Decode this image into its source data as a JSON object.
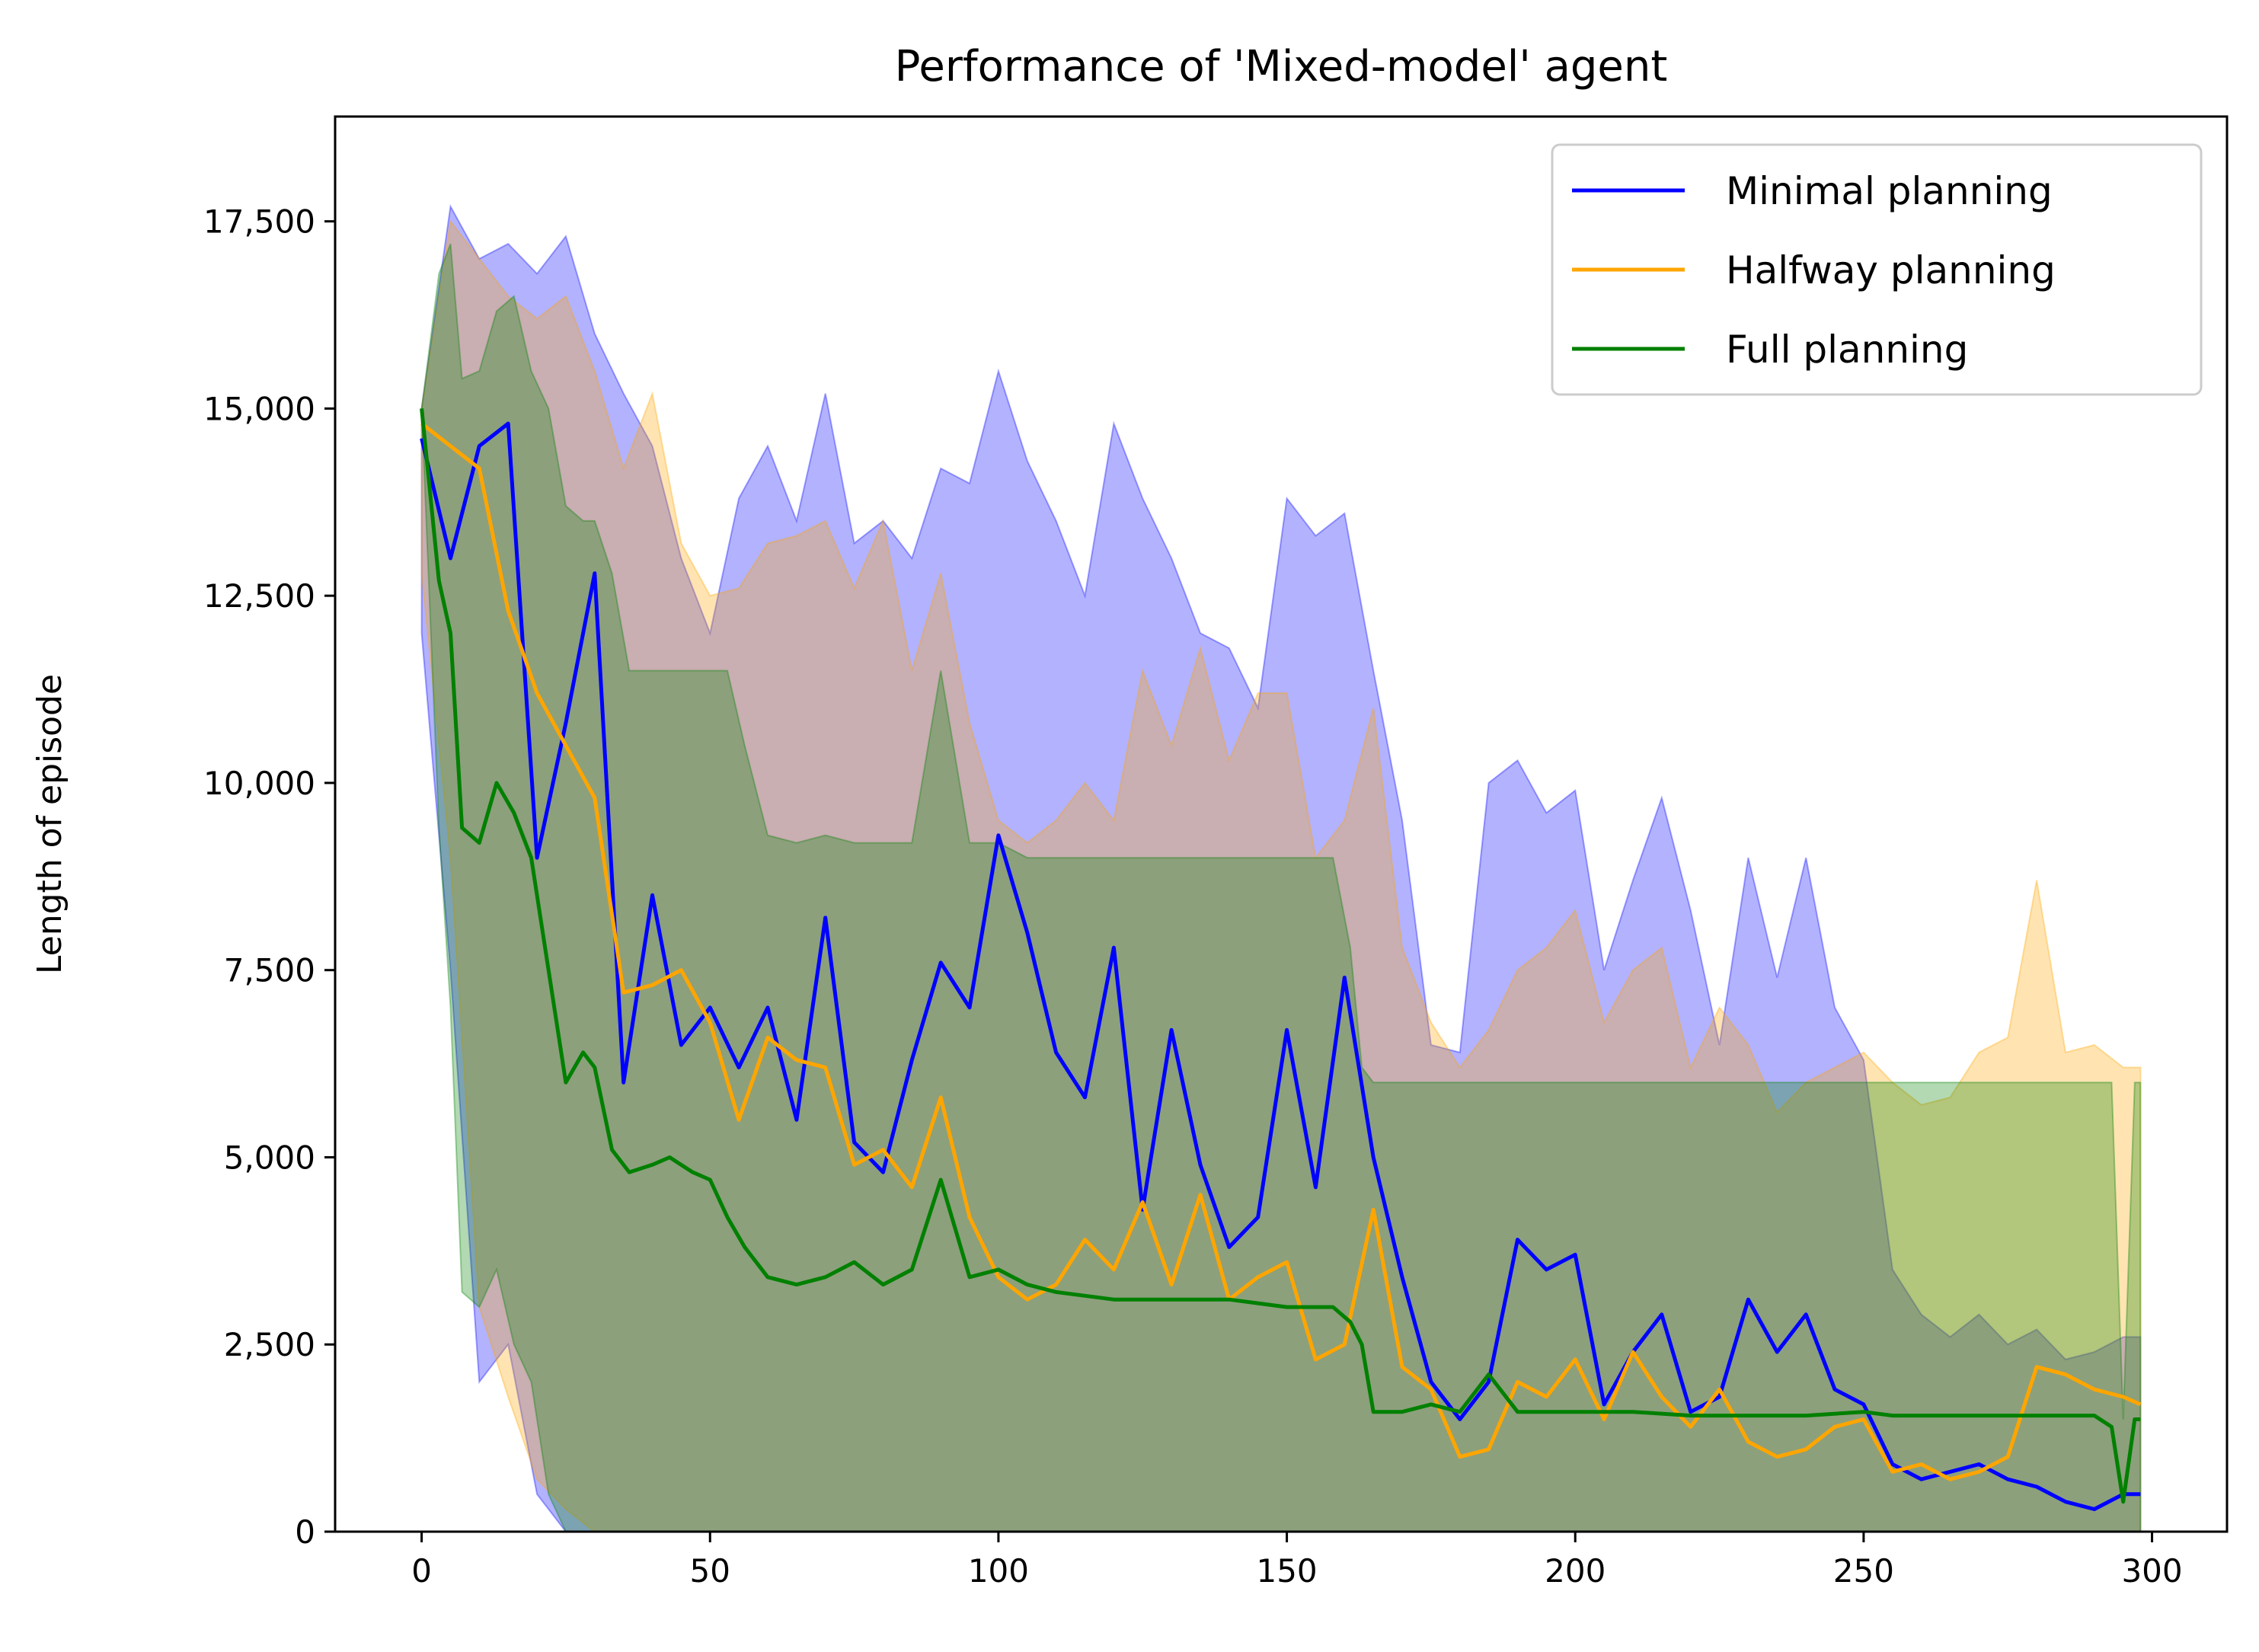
{
  "chart_data": {
    "type": "line",
    "title": "Performance of 'Mixed-model' agent",
    "xlabel": "",
    "ylabel": "Length of episode",
    "xlim": [
      -15,
      313
    ],
    "ylim": [
      0,
      18900
    ],
    "xticks": [
      0,
      50,
      100,
      150,
      200,
      250,
      300
    ],
    "yticks": [
      0,
      2500,
      5000,
      7500,
      10000,
      12500,
      15000,
      17500
    ],
    "xtick_labels": [
      "0",
      "50",
      "100",
      "150",
      "200",
      "250",
      "300"
    ],
    "ytick_labels": [
      "0",
      "2,500",
      "5,000",
      "7,500",
      "10,000",
      "12,500",
      "15,000",
      "17,500"
    ],
    "grid": false,
    "legend_position": "top-right",
    "shaded_band": "min-max range per series (alpha 0.3)",
    "series": [
      {
        "name": "Minimal planning",
        "color": "#0000ff",
        "x": [
          0,
          5,
          10,
          15,
          20,
          25,
          30,
          35,
          40,
          45,
          50,
          55,
          60,
          65,
          70,
          75,
          80,
          85,
          90,
          95,
          100,
          105,
          110,
          115,
          120,
          125,
          130,
          135,
          140,
          145,
          150,
          155,
          160,
          165,
          170,
          175,
          180,
          185,
          190,
          195,
          200,
          205,
          210,
          215,
          220,
          225,
          230,
          235,
          240,
          245,
          250,
          255,
          260,
          265,
          270,
          275,
          280,
          285,
          290,
          295,
          298
        ],
        "y": [
          14600,
          13000,
          14500,
          14800,
          9000,
          10800,
          12800,
          6000,
          8500,
          6500,
          7000,
          6200,
          7000,
          5500,
          8200,
          5200,
          4800,
          6300,
          7600,
          7000,
          9300,
          8000,
          6400,
          5800,
          7800,
          4300,
          6700,
          4900,
          3800,
          4200,
          6700,
          4600,
          7400,
          5000,
          3400,
          2000,
          1500,
          2000,
          3900,
          3500,
          3700,
          1700,
          2400,
          2900,
          1600,
          1800,
          3100,
          2400,
          2900,
          1900,
          1700,
          900,
          700,
          800,
          900,
          700,
          600,
          400,
          300,
          500,
          500
        ],
        "upper": [
          15000,
          17700,
          17000,
          17200,
          16800,
          17300,
          16000,
          15200,
          14500,
          13000,
          12000,
          13800,
          14500,
          13500,
          15200,
          13200,
          13500,
          13000,
          14200,
          14000,
          15500,
          14300,
          13500,
          12500,
          14800,
          13800,
          13000,
          12000,
          11800,
          11000,
          13800,
          13300,
          13600,
          11500,
          9500,
          6500,
          6400,
          10000,
          10300,
          9600,
          9900,
          7500,
          8700,
          9800,
          8300,
          6500,
          9000,
          7400,
          9000,
          7000,
          6300,
          3500,
          2900,
          2600,
          2900,
          2500,
          2700,
          2300,
          2400,
          2600,
          2600
        ],
        "lower": [
          12000,
          7500,
          2000,
          2500,
          500,
          0,
          0,
          0,
          0,
          0,
          0,
          0,
          0,
          0,
          0,
          0,
          0,
          0,
          0,
          0,
          0,
          0,
          0,
          0,
          0,
          0,
          0,
          0,
          0,
          0,
          0,
          0,
          0,
          0,
          0,
          0,
          0,
          0,
          0,
          0,
          0,
          0,
          0,
          0,
          0,
          0,
          0,
          0,
          0,
          0,
          0,
          0,
          0,
          0,
          0,
          0,
          0,
          0,
          0,
          0,
          0
        ]
      },
      {
        "name": "Halfway planning",
        "color": "#ffa500",
        "x": [
          0,
          5,
          10,
          15,
          20,
          25,
          30,
          35,
          40,
          45,
          50,
          55,
          60,
          65,
          70,
          75,
          80,
          85,
          90,
          95,
          100,
          105,
          110,
          115,
          120,
          125,
          130,
          135,
          140,
          145,
          150,
          155,
          160,
          165,
          170,
          175,
          180,
          185,
          190,
          195,
          200,
          205,
          210,
          215,
          220,
          225,
          230,
          235,
          240,
          245,
          250,
          255,
          260,
          265,
          270,
          275,
          280,
          285,
          290,
          295,
          298
        ],
        "y": [
          14800,
          14500,
          14200,
          12300,
          11200,
          10500,
          9800,
          7200,
          7300,
          7500,
          6800,
          5500,
          6600,
          6300,
          6200,
          4900,
          5100,
          4600,
          5800,
          4200,
          3400,
          3100,
          3300,
          3900,
          3500,
          4400,
          3300,
          4500,
          3100,
          3400,
          3600,
          2300,
          2500,
          4300,
          2200,
          1900,
          1000,
          1100,
          2000,
          1800,
          2300,
          1500,
          2400,
          1800,
          1400,
          1900,
          1200,
          1000,
          1100,
          1400,
          1500,
          800,
          900,
          700,
          800,
          1000,
          2200,
          2100,
          1900,
          1800,
          1700
        ],
        "upper": [
          15000,
          17500,
          17000,
          16500,
          16200,
          16500,
          15500,
          14200,
          15200,
          13200,
          12500,
          12600,
          13200,
          13300,
          13500,
          12600,
          13500,
          11500,
          12800,
          10800,
          9500,
          9200,
          9500,
          10000,
          9500,
          11500,
          10500,
          11800,
          10300,
          11200,
          11200,
          9000,
          9500,
          11000,
          7800,
          6800,
          6200,
          6700,
          7500,
          7800,
          8300,
          6800,
          7500,
          7800,
          6200,
          7000,
          6500,
          5600,
          6000,
          6200,
          6400,
          6000,
          5700,
          5800,
          6400,
          6600,
          8700,
          6400,
          6500,
          6200,
          6200
        ],
        "lower": [
          12800,
          9000,
          3000,
          1800,
          700,
          300,
          0,
          0,
          0,
          0,
          0,
          0,
          0,
          0,
          0,
          0,
          0,
          0,
          0,
          0,
          0,
          0,
          0,
          0,
          0,
          0,
          0,
          0,
          0,
          0,
          0,
          0,
          0,
          0,
          0,
          0,
          0,
          0,
          0,
          0,
          0,
          0,
          0,
          0,
          0,
          0,
          0,
          0,
          0,
          0,
          0,
          0,
          0,
          0,
          0,
          0,
          0,
          0,
          0,
          0,
          0
        ]
      },
      {
        "name": "Full planning",
        "color": "#008000",
        "x": [
          0,
          3,
          5,
          7,
          10,
          13,
          16,
          19,
          22,
          25,
          28,
          30,
          33,
          36,
          40,
          43,
          47,
          50,
          53,
          56,
          60,
          65,
          70,
          75,
          80,
          85,
          90,
          95,
          100,
          105,
          110,
          120,
          130,
          140,
          150,
          155,
          158,
          161,
          163,
          165,
          170,
          175,
          180,
          185,
          190,
          195,
          200,
          210,
          220,
          230,
          240,
          250,
          255,
          260,
          270,
          280,
          290,
          293,
          295,
          297,
          298
        ],
        "y": [
          15000,
          12700,
          12000,
          9400,
          9200,
          10000,
          9600,
          9000,
          7500,
          6000,
          6400,
          6200,
          5100,
          4800,
          4900,
          5000,
          4800,
          4700,
          4200,
          3800,
          3400,
          3300,
          3400,
          3600,
          3300,
          3500,
          4700,
          3400,
          3500,
          3300,
          3200,
          3100,
          3100,
          3100,
          3000,
          3000,
          3000,
          2800,
          2500,
          1600,
          1600,
          1700,
          1600,
          2100,
          1600,
          1600,
          1600,
          1600,
          1550,
          1550,
          1550,
          1600,
          1550,
          1550,
          1550,
          1550,
          1550,
          1400,
          400,
          1500,
          1500
        ],
        "upper": [
          15000,
          16800,
          17200,
          15400,
          15500,
          16300,
          16500,
          15500,
          15000,
          13700,
          13500,
          13500,
          12800,
          11500,
          11500,
          11500,
          11500,
          11500,
          11500,
          10500,
          9300,
          9200,
          9300,
          9200,
          9200,
          9200,
          11500,
          9200,
          9200,
          9000,
          9000,
          9000,
          9000,
          9000,
          9000,
          9000,
          9000,
          7800,
          6200,
          6000,
          6000,
          6000,
          6000,
          6000,
          6000,
          6000,
          6000,
          6000,
          6000,
          6000,
          6000,
          6000,
          6000,
          6000,
          6000,
          6000,
          6000,
          6000,
          1500,
          6000,
          6000
        ],
        "lower": [
          15000,
          9400,
          7000,
          3200,
          3000,
          3500,
          2500,
          2000,
          500,
          0,
          0,
          0,
          0,
          0,
          0,
          0,
          0,
          0,
          0,
          0,
          0,
          0,
          0,
          0,
          0,
          0,
          0,
          0,
          0,
          0,
          0,
          0,
          0,
          0,
          0,
          0,
          0,
          0,
          0,
          0,
          0,
          0,
          0,
          0,
          0,
          0,
          0,
          0,
          0,
          0,
          0,
          0,
          0,
          0,
          0,
          0,
          0,
          0,
          0,
          0,
          0
        ]
      }
    ]
  }
}
